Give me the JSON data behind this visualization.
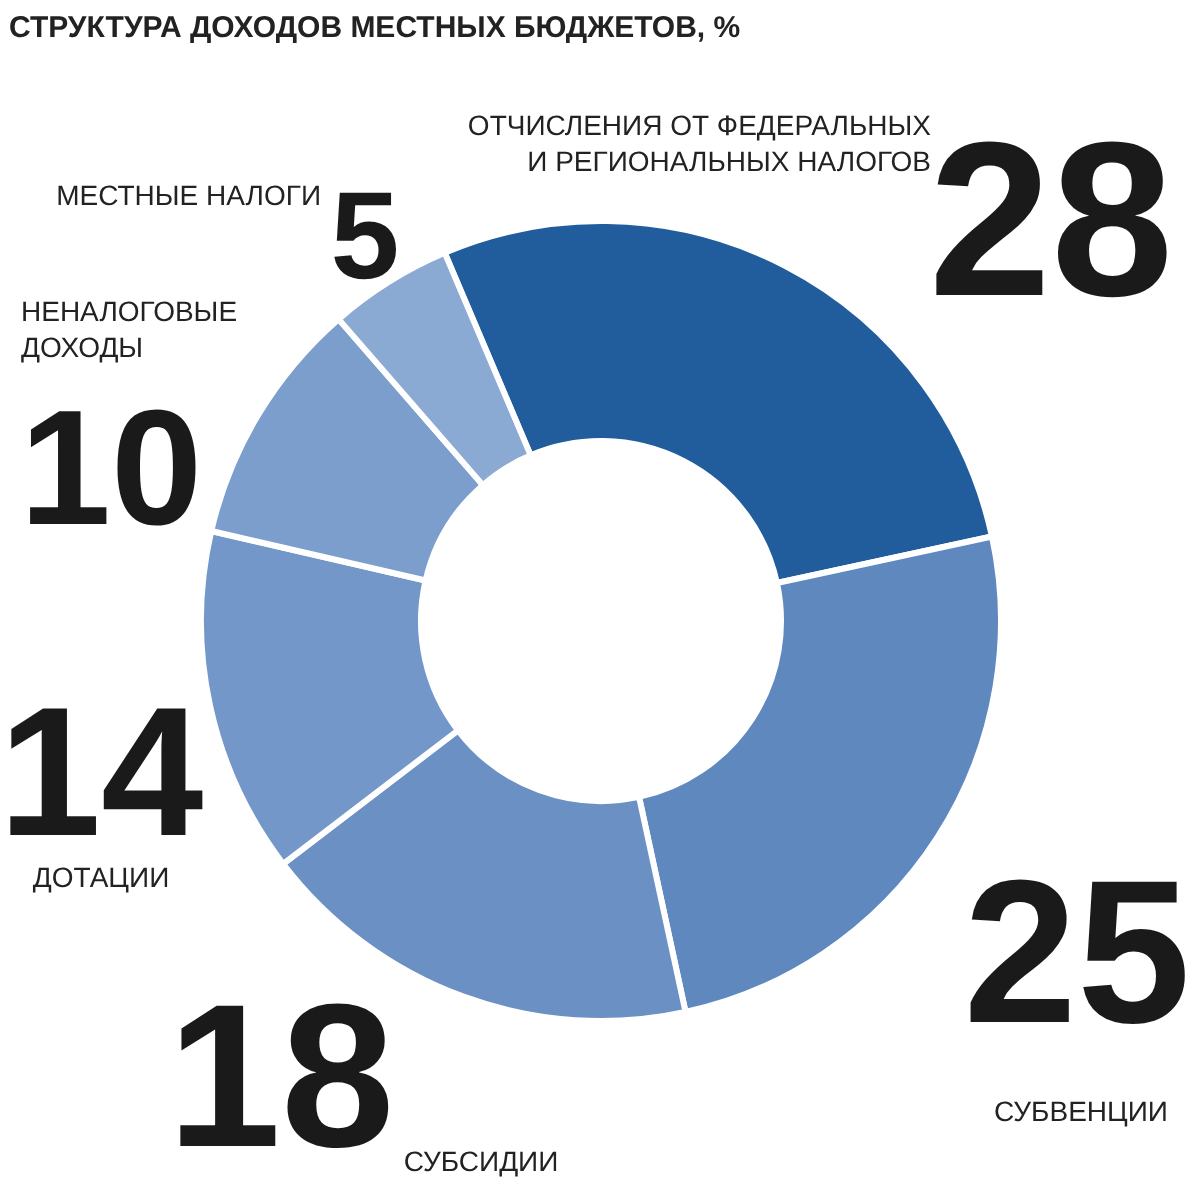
{
  "chart_data": {
    "type": "donut",
    "title": "СТРУКТУРА ДОХОДОВ МЕСТНЫХ БЮДЖЕТОВ, %",
    "categories": [
      "ОТЧИСЛЕНИЯ ОТ ФЕДЕРАЛЬНЫХ И РЕГИОНАЛЬНЫХ НАЛОГОВ",
      "СУБВЕНЦИИ",
      "СУБСИДИИ",
      "ДОТАЦИИ",
      "НЕНАЛОГОВЫЕ ДОХОДЫ",
      "МЕСТНЫЕ НАЛОГИ"
    ],
    "values": [
      28,
      25,
      18,
      14,
      10,
      5
    ],
    "colors": [
      "#215d9c",
      "#5f88bf",
      "#6a90c4",
      "#7397c9",
      "#7c9ecd",
      "#8aa9d3"
    ],
    "data_labels": true
  }
}
